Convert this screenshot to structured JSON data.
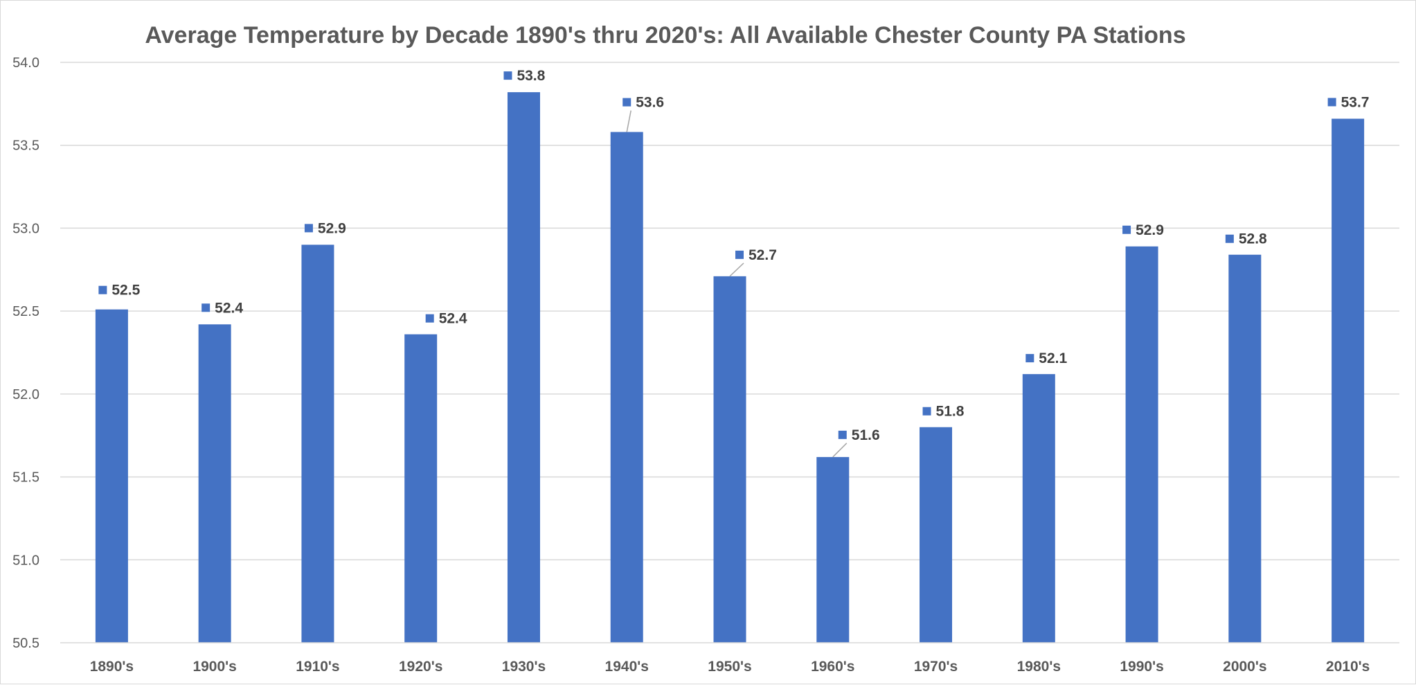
{
  "chart_data": {
    "type": "bar",
    "title": "Average Temperature by Decade 1890's thru 2020's: All Available Chester County PA Stations",
    "xlabel": "",
    "ylabel": "",
    "ylim": [
      50.5,
      54.0
    ],
    "yticks": [
      "50.5",
      "51.0",
      "51.5",
      "52.0",
      "52.5",
      "53.0",
      "53.5",
      "54.0"
    ],
    "grid": true,
    "categories": [
      "1890's",
      "1900's",
      "1910's",
      "1920's",
      "1930's",
      "1940's",
      "1950's",
      "1960's",
      "1970's",
      "1980's",
      "1990's",
      "2000's",
      "2010's"
    ],
    "values": [
      52.51,
      52.42,
      52.9,
      52.36,
      53.82,
      53.58,
      52.71,
      51.62,
      51.8,
      52.12,
      52.89,
      52.84,
      53.66
    ],
    "data_labels": [
      "52.5",
      "52.4",
      "52.9",
      "52.4",
      "53.8",
      "53.6",
      "52.7",
      "51.6",
      "51.8",
      "52.1",
      "52.9",
      "52.8",
      "53.7"
    ],
    "bar_color": "#4472C4",
    "gridline_color": "#D9D9D9"
  }
}
